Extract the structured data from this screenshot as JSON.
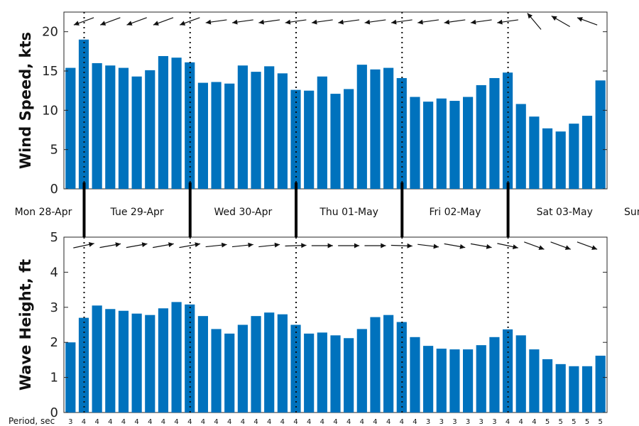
{
  "chart_data": [
    {
      "type": "bar",
      "ylabel": "Wind Speed, kts",
      "ylim": [
        0,
        22.5
      ],
      "yticks": [
        0,
        5,
        10,
        15,
        20
      ],
      "color": "#0072bd",
      "values": [
        15.4,
        19.0,
        16.0,
        15.7,
        15.4,
        14.3,
        15.1,
        16.9,
        16.7,
        16.1,
        13.5,
        13.6,
        13.4,
        15.7,
        14.9,
        15.6,
        14.7,
        12.6,
        12.5,
        14.3,
        12.1,
        12.7,
        15.8,
        15.2,
        15.4,
        14.1,
        11.7,
        11.1,
        11.5,
        11.2,
        11.7,
        13.2,
        14.1,
        14.8,
        10.8,
        9.2,
        7.7,
        7.3,
        8.3,
        9.3,
        13.8
      ],
      "direction_arrows_deg": [
        250,
        250,
        250,
        250,
        250,
        250,
        250,
        250,
        250,
        250,
        260,
        262,
        262,
        262,
        262,
        262,
        262,
        262,
        262,
        262,
        262,
        262,
        262,
        262,
        262,
        262,
        262,
        262,
        262,
        262,
        262,
        262,
        262,
        262,
        300,
        320,
        310,
        300,
        290,
        290,
        280
      ]
    },
    {
      "type": "bar",
      "ylabel": "Wave Height, ft",
      "ylim": [
        0,
        5
      ],
      "yticks": [
        0,
        1,
        2,
        3,
        4,
        5
      ],
      "color": "#0072bd",
      "values": [
        2.0,
        2.7,
        3.05,
        2.95,
        2.9,
        2.82,
        2.78,
        2.97,
        3.15,
        3.08,
        2.75,
        2.38,
        2.25,
        2.5,
        2.75,
        2.85,
        2.8,
        2.5,
        2.25,
        2.28,
        2.2,
        2.12,
        2.38,
        2.72,
        2.78,
        2.58,
        2.15,
        1.9,
        1.82,
        1.8,
        1.8,
        1.92,
        2.15,
        2.37,
        2.2,
        1.8,
        1.52,
        1.38,
        1.32,
        1.32,
        1.62
      ],
      "direction_arrows_deg": [
        78,
        78,
        80,
        80,
        80,
        80,
        80,
        80,
        80,
        80,
        82,
        84,
        84,
        84,
        84,
        84,
        86,
        88,
        90,
        90,
        90,
        90,
        90,
        90,
        92,
        92,
        95,
        97,
        98,
        100,
        100,
        100,
        100,
        102,
        105,
        110,
        110,
        110,
        110,
        110,
        110
      ]
    }
  ],
  "days": [
    "Mon 28-Apr",
    "Tue 29-Apr",
    "Wed 30-Apr",
    "Thu 01-May",
    "Fri 02-May",
    "Sat 03-May",
    "Sun"
  ],
  "period_label": "Period, sec",
  "periods": [
    3,
    4,
    4,
    4,
    4,
    4,
    4,
    4,
    4,
    4,
    4,
    4,
    4,
    4,
    4,
    4,
    4,
    4,
    4,
    4,
    4,
    4,
    4,
    4,
    4,
    4,
    4,
    3,
    3,
    3,
    3,
    3,
    3,
    4,
    4,
    4,
    5,
    5,
    5,
    5,
    5
  ]
}
